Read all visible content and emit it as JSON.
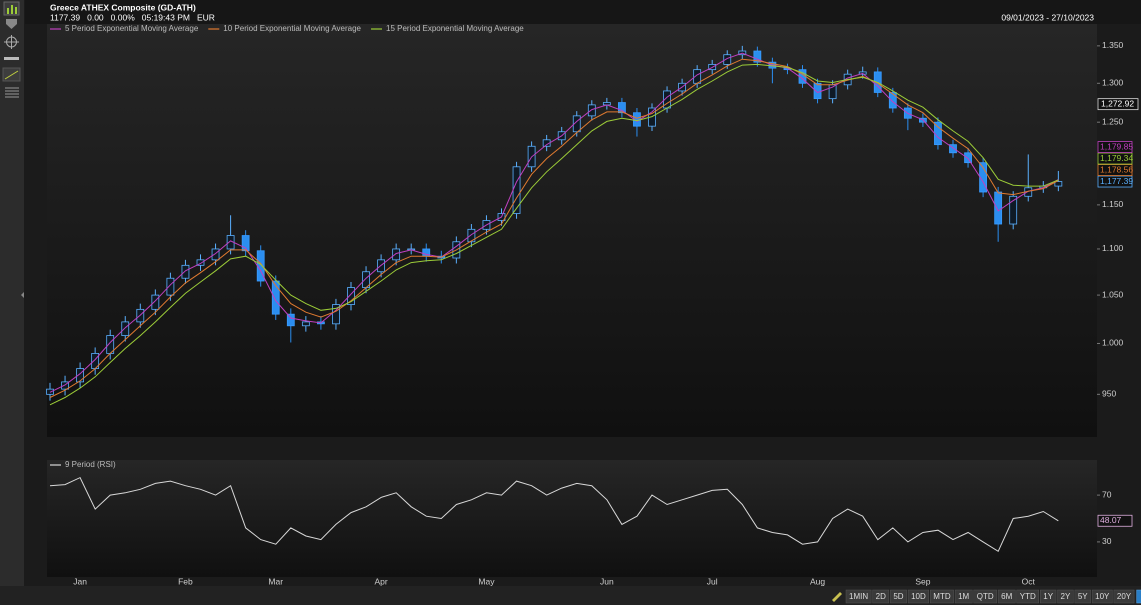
{
  "header": {
    "title": "Greece ATHEX Composite (GD-ATH)",
    "quote": [
      "1177.39",
      "0.00",
      "0.00%",
      "05:19:43 PM",
      "EUR"
    ],
    "date_range": "09/01/2023 - 27/10/2023"
  },
  "chart_data": [
    {
      "type": "candlestick",
      "log_scale": true,
      "ylim": [
        910,
        1358
      ],
      "yticks": [
        {
          "value": 1350,
          "label": "1.350"
        },
        {
          "value": 1300,
          "label": "1.300"
        },
        {
          "value": 1250,
          "label": "1.250"
        },
        {
          "value": 1150,
          "label": "1.150"
        },
        {
          "value": 1100,
          "label": "1.100"
        },
        {
          "value": 1050,
          "label": "1.050"
        },
        {
          "value": 1000,
          "label": "1.000"
        },
        950
      ],
      "categories": [
        null,
        null,
        "Jan",
        null,
        null,
        null,
        null,
        null,
        null,
        "Feb",
        null,
        null,
        null,
        null,
        null,
        "Mar",
        null,
        null,
        null,
        null,
        null,
        null,
        "Apr",
        null,
        null,
        null,
        null,
        null,
        null,
        "May",
        null,
        null,
        null,
        null,
        null,
        null,
        null,
        "Jun",
        null,
        null,
        null,
        null,
        null,
        null,
        "Jul",
        null,
        null,
        null,
        null,
        null,
        null,
        "Aug",
        null,
        null,
        null,
        null,
        null,
        null,
        "Sep",
        null,
        null,
        null,
        null,
        null,
        null,
        "Oct",
        null,
        null
      ],
      "open": [
        950,
        955,
        962,
        975,
        990,
        1008,
        1022,
        1035,
        1050,
        1068,
        1082,
        1088,
        1100,
        1115,
        1098,
        1065,
        1030,
        1018,
        1022,
        1020,
        1040,
        1058,
        1075,
        1088,
        1100,
        1100,
        1092,
        1090,
        1108,
        1122,
        1132,
        1140,
        1195,
        1220,
        1228,
        1238,
        1258,
        1272,
        1275,
        1262,
        1245,
        1268,
        1290,
        1300,
        1318,
        1325,
        1338,
        1343,
        1328,
        1320,
        1318,
        1300,
        1280,
        1298,
        1312,
        1315,
        1288,
        1268,
        1255,
        1250,
        1222,
        1212,
        1200,
        1165,
        1128,
        1160,
        1170,
        1172
      ],
      "high": [
        961,
        968,
        981,
        996,
        1014,
        1028,
        1041,
        1056,
        1074,
        1088,
        1094,
        1106,
        1138,
        1121,
        1104,
        1071,
        1036,
        1028,
        1028,
        1046,
        1064,
        1081,
        1094,
        1106,
        1106,
        1106,
        1098,
        1114,
        1128,
        1138,
        1146,
        1201,
        1226,
        1234,
        1244,
        1264,
        1278,
        1281,
        1281,
        1268,
        1274,
        1296,
        1306,
        1324,
        1331,
        1344,
        1350,
        1349,
        1334,
        1326,
        1324,
        1306,
        1304,
        1318,
        1322,
        1321,
        1294,
        1274,
        1261,
        1256,
        1228,
        1218,
        1206,
        1171,
        1166,
        1210,
        1178,
        1190
      ],
      "low": [
        944,
        949,
        956,
        969,
        984,
        1002,
        1016,
        1029,
        1044,
        1062,
        1076,
        1082,
        1094,
        1092,
        1059,
        1024,
        1001,
        1012,
        1014,
        1014,
        1034,
        1052,
        1069,
        1082,
        1094,
        1086,
        1084,
        1084,
        1102,
        1116,
        1126,
        1134,
        1189,
        1214,
        1222,
        1232,
        1252,
        1266,
        1256,
        1232,
        1239,
        1262,
        1284,
        1294,
        1312,
        1319,
        1332,
        1322,
        1300,
        1312,
        1294,
        1274,
        1274,
        1292,
        1306,
        1282,
        1262,
        1240,
        1244,
        1216,
        1206,
        1194,
        1159,
        1108,
        1122,
        1154,
        1164,
        1166
      ],
      "close": [
        955,
        962,
        975,
        990,
        1008,
        1022,
        1035,
        1050,
        1068,
        1082,
        1088,
        1100,
        1115,
        1098,
        1065,
        1030,
        1018,
        1022,
        1020,
        1040,
        1058,
        1075,
        1088,
        1100,
        1100,
        1092,
        1090,
        1108,
        1122,
        1132,
        1140,
        1195,
        1220,
        1228,
        1238,
        1258,
        1272,
        1275,
        1262,
        1245,
        1268,
        1290,
        1300,
        1318,
        1325,
        1338,
        1343,
        1328,
        1320,
        1318,
        1300,
        1280,
        1298,
        1312,
        1315,
        1288,
        1268,
        1255,
        1250,
        1222,
        1212,
        1200,
        1165,
        1128,
        1160,
        1170,
        1172,
        1177.39
      ],
      "close_last_label": "1,177.39",
      "up_color": "#5ab0ff",
      "down_color": "#2b8ef0",
      "marker": {
        "value": 1272.92,
        "label": "1,272.92"
      },
      "series": [
        {
          "name": "5 Period Exponential Moving Average",
          "color": "#c040c0",
          "last_label": "1,179.85",
          "values": [
            952,
            959,
            970,
            984,
            1001,
            1016,
            1029,
            1044,
            1061,
            1076,
            1084,
            1095,
            1109,
            1101,
            1076,
            1044,
            1026,
            1023,
            1021,
            1034,
            1051,
            1068,
            1082,
            1095,
            1099,
            1094,
            1091,
            1103,
            1116,
            1127,
            1136,
            1177,
            1207,
            1222,
            1233,
            1251,
            1266,
            1272,
            1265,
            1251,
            1263,
            1282,
            1295,
            1311,
            1321,
            1333,
            1340,
            1332,
            1324,
            1320,
            1306,
            1288,
            1295,
            1307,
            1313,
            1296,
            1276,
            1261,
            1253,
            1231,
            1218,
            1205,
            1177,
            1143,
            1155,
            1166,
            1170,
            1179.85
          ]
        },
        {
          "name": "10 Period Exponential Moving Average",
          "color": "#e07a30",
          "last_label": "1,178.56",
          "values": [
            947,
            954,
            963,
            975,
            990,
            1004,
            1018,
            1032,
            1048,
            1063,
            1074,
            1086,
            1099,
            1099,
            1084,
            1060,
            1041,
            1032,
            1027,
            1033,
            1044,
            1058,
            1072,
            1085,
            1092,
            1092,
            1091,
            1099,
            1109,
            1119,
            1128,
            1158,
            1186,
            1205,
            1220,
            1237,
            1253,
            1263,
            1263,
            1255,
            1261,
            1274,
            1286,
            1300,
            1311,
            1323,
            1332,
            1330,
            1326,
            1322,
            1312,
            1298,
            1298,
            1304,
            1309,
            1300,
            1286,
            1272,
            1262,
            1244,
            1230,
            1217,
            1194,
            1164,
            1162,
            1166,
            1169,
            1178.56
          ]
        },
        {
          "name": "15 Period Exponential Moving Average",
          "color": "#9ccc38",
          "last_label": "1,179.34",
          "values": [
            940,
            947,
            956,
            967,
            981,
            995,
            1008,
            1022,
            1037,
            1052,
            1064,
            1076,
            1089,
            1092,
            1083,
            1066,
            1050,
            1041,
            1034,
            1036,
            1043,
            1054,
            1065,
            1077,
            1085,
            1087,
            1088,
            1095,
            1104,
            1113,
            1122,
            1146,
            1170,
            1189,
            1205,
            1222,
            1239,
            1251,
            1255,
            1252,
            1257,
            1268,
            1279,
            1292,
            1303,
            1315,
            1324,
            1325,
            1323,
            1321,
            1314,
            1303,
            1301,
            1305,
            1308,
            1301,
            1290,
            1278,
            1269,
            1253,
            1239,
            1226,
            1206,
            1180,
            1173,
            1172,
            1172,
            1179.34
          ]
        }
      ]
    },
    {
      "type": "line",
      "ylim": [
        0,
        100
      ],
      "yticks": [
        30,
        70
      ],
      "series": [
        {
          "name": "9 Period (RSI)",
          "color": "#d8d8d8",
          "last_label": "48.07",
          "values": [
            78,
            79,
            85,
            58,
            70,
            72,
            75,
            80,
            82,
            78,
            75,
            70,
            78,
            42,
            32,
            28,
            42,
            35,
            32,
            45,
            55,
            60,
            68,
            72,
            60,
            52,
            50,
            62,
            66,
            72,
            70,
            82,
            78,
            70,
            76,
            80,
            78,
            66,
            45,
            52,
            70,
            62,
            66,
            70,
            74,
            75,
            62,
            42,
            38,
            36,
            28,
            30,
            50,
            58,
            52,
            32,
            42,
            30,
            38,
            40,
            32,
            38,
            30,
            22,
            50,
            52,
            56,
            48.07
          ]
        }
      ]
    }
  ],
  "range_buttons": [
    "1MIN",
    "2D",
    "5D",
    "10D",
    "MTD",
    "1M",
    "QTD",
    "6M",
    "YTD",
    "1Y",
    "2Y",
    "5Y",
    "10Y",
    "20Y"
  ]
}
